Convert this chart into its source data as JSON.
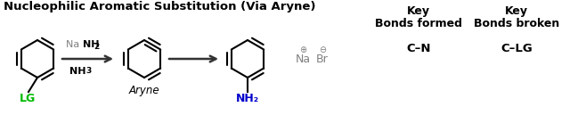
{
  "title": "Nucleophilic Aromatic Substitution (Via Aryne)",
  "title_fontsize": 9.5,
  "background": "#ffffff",
  "benzene_color": "#000000",
  "lg_color": "#00bb00",
  "nh2_color": "#0000cc",
  "gray_color": "#808080",
  "arrow_color": "#333333",
  "key_label1_line1": "Key",
  "key_label1_line2": "Bonds formed",
  "key_value1": "C–N",
  "key_label2_line1": "Key",
  "key_label2_line2": "Bonds broken",
  "key_value2": "C–LG",
  "aryne_label": "Aryne",
  "byproduct_plus": "⊕",
  "byproduct_minus": "⊖"
}
